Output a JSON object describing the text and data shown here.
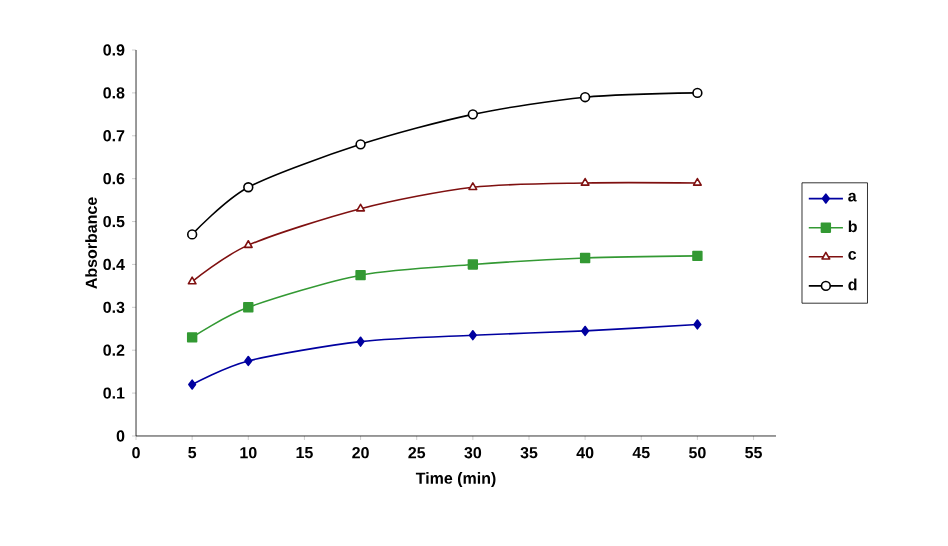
{
  "chart_data": {
    "type": "line",
    "xlabel": "Time (min)",
    "ylabel": "Absorbance",
    "x": [
      5,
      10,
      20,
      30,
      40,
      50
    ],
    "xlim": [
      0,
      57
    ],
    "xticks": [
      0,
      5,
      10,
      15,
      20,
      25,
      30,
      35,
      40,
      45,
      50,
      55
    ],
    "ylim": [
      0,
      0.9
    ],
    "yticks": [
      0,
      0.1,
      0.2,
      0.3,
      0.4,
      0.5,
      0.6,
      0.7,
      0.8,
      0.9
    ],
    "grid": false,
    "legend": "right",
    "series": [
      {
        "name": "a",
        "color": "#0000a0",
        "marker": "diamond",
        "values": [
          0.12,
          0.175,
          0.22,
          0.235,
          0.245,
          0.26
        ]
      },
      {
        "name": "b",
        "color": "#339933",
        "marker": "square",
        "values": [
          0.23,
          0.3,
          0.375,
          0.4,
          0.415,
          0.42
        ]
      },
      {
        "name": "c",
        "color": "#7f1010",
        "marker": "triangle",
        "values": [
          0.36,
          0.445,
          0.53,
          0.58,
          0.59,
          0.59
        ]
      },
      {
        "name": "d",
        "color": "#000000",
        "marker": "circle",
        "values": [
          0.47,
          0.58,
          0.68,
          0.75,
          0.79,
          0.8
        ]
      }
    ]
  }
}
